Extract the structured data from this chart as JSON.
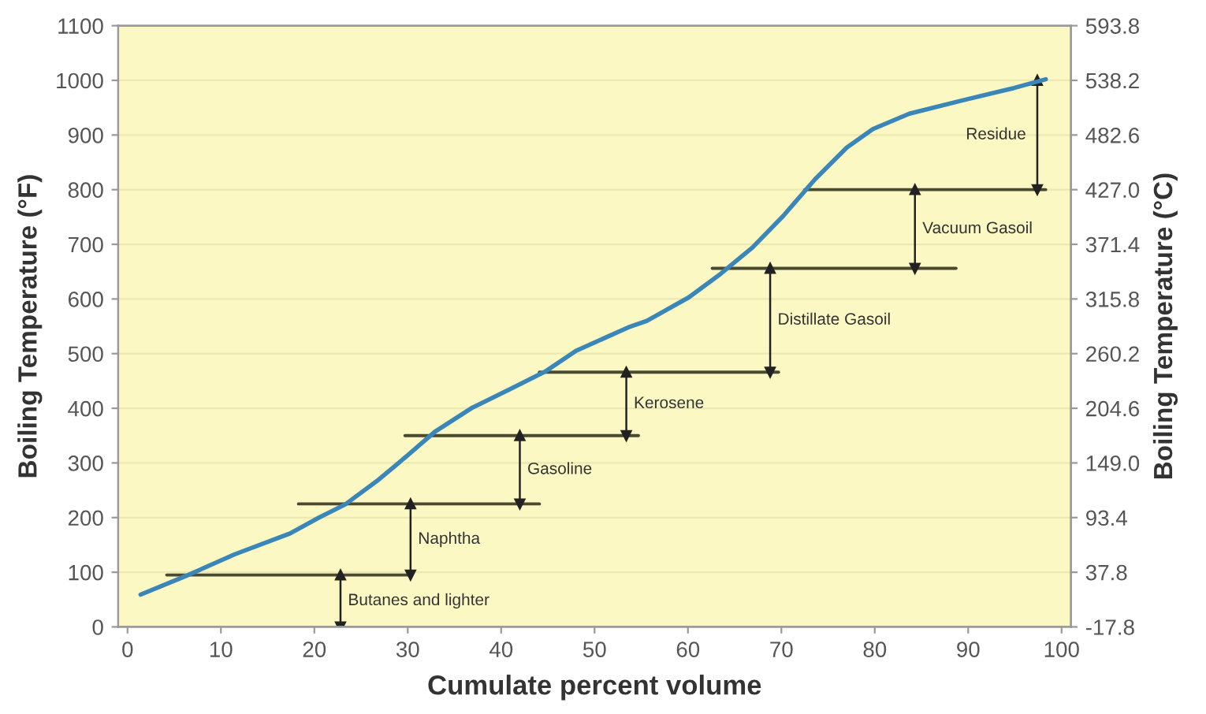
{
  "chart_data": {
    "type": "line",
    "xlabel": "Cumulate percent volume",
    "ylabel": "Boiling Temperature (°F)",
    "y2label": "Boiling Temperature (°C)",
    "xlim": [
      -1,
      101
    ],
    "xticks": [
      0,
      10,
      20,
      30,
      40,
      50,
      60,
      70,
      80,
      90,
      100
    ],
    "ylim": [
      0,
      1100
    ],
    "yticks": [
      0,
      100,
      200,
      300,
      400,
      500,
      600,
      700,
      800,
      900,
      1000,
      1100
    ],
    "y2lim": [
      -17.8,
      593.8
    ],
    "y2ticks": [
      -17.8,
      37.8,
      93.4,
      {
        "value": 149,
        "label": "149.0"
      },
      204.6,
      260.2,
      315.8,
      371.4,
      {
        "value": 427,
        "label": "427.0"
      },
      482.6,
      538.2,
      593.8
    ],
    "grid": "y",
    "line_style": "solid",
    "marker": "none",
    "series": [
      {
        "type": "line",
        "color": "#3a86b8",
        "x": [
          1.4,
          6.5,
          11.5,
          17.4,
          20.5,
          23.3,
          26.7,
          30,
          32.9,
          36.8,
          41.3,
          44.7,
          48,
          53.6,
          55.6,
          60.1,
          63.5,
          66.9,
          70.2,
          73.6,
          77,
          79.8,
          83.7,
          89.3,
          94.9,
          98.3
        ],
        "values": [
          59,
          95,
          133,
          171,
          200,
          224,
          267,
          314,
          357,
          400,
          438,
          467,
          505,
          548,
          560,
          603,
          646,
          694,
          752,
          819,
          877,
          911,
          939,
          963,
          986,
          1002
        ]
      },
      {
        "type": "line",
        "color": "#4a4a30",
        "x": [
          4.2,
          30.3
        ],
        "values": [
          95,
          95
        ]
      },
      {
        "type": "line",
        "color": "#4a4a30",
        "x": [
          18.3,
          44.1
        ],
        "values": [
          225,
          225
        ]
      },
      {
        "type": "line",
        "color": "#4a4a30",
        "x": [
          29.7,
          54.7
        ],
        "values": [
          350,
          350
        ]
      },
      {
        "type": "line",
        "color": "#4a4a30",
        "x": [
          44.1,
          69.7
        ],
        "values": [
          466,
          466
        ]
      },
      {
        "type": "line",
        "color": "#4a4a30",
        "x": [
          62.6,
          88.7
        ],
        "values": [
          656,
          656
        ]
      },
      {
        "type": "line",
        "color": "#4a4a30",
        "x": [
          72.5,
          98.3
        ],
        "values": [
          800,
          800
        ]
      },
      {
        "type": "line",
        "marker": "triangle",
        "color": "#222222",
        "x": [
          22.8,
          22.8
        ],
        "values": [
          0,
          95
        ]
      },
      {
        "type": "line",
        "marker": "triangle",
        "color": "#222222",
        "x": [
          30.3,
          30.3
        ],
        "values": [
          95,
          225
        ]
      },
      {
        "type": "line",
        "marker": "triangle",
        "color": "#222222",
        "x": [
          42,
          42
        ],
        "values": [
          225,
          350
        ]
      },
      {
        "type": "line",
        "marker": "triangle",
        "color": "#222222",
        "x": [
          53.4,
          53.4
        ],
        "values": [
          350,
          466
        ]
      },
      {
        "type": "line",
        "marker": "triangle",
        "color": "#222222",
        "x": [
          68.8,
          68.8
        ],
        "values": [
          466,
          656
        ]
      },
      {
        "type": "line",
        "marker": "triangle",
        "color": "#222222",
        "x": [
          84.3,
          84.3
        ],
        "values": [
          656,
          800
        ]
      },
      {
        "type": "line",
        "marker": "triangle",
        "color": "#222222",
        "x": [
          97.4,
          97.4
        ],
        "values": [
          800,
          1000
        ]
      }
    ],
    "annotations": [
      "Butanes and lighter",
      "Naphtha",
      "Gasoline",
      "Kerosene",
      "Distillate Gasoil",
      "Vacuum Gasoil",
      "Residue"
    ]
  }
}
